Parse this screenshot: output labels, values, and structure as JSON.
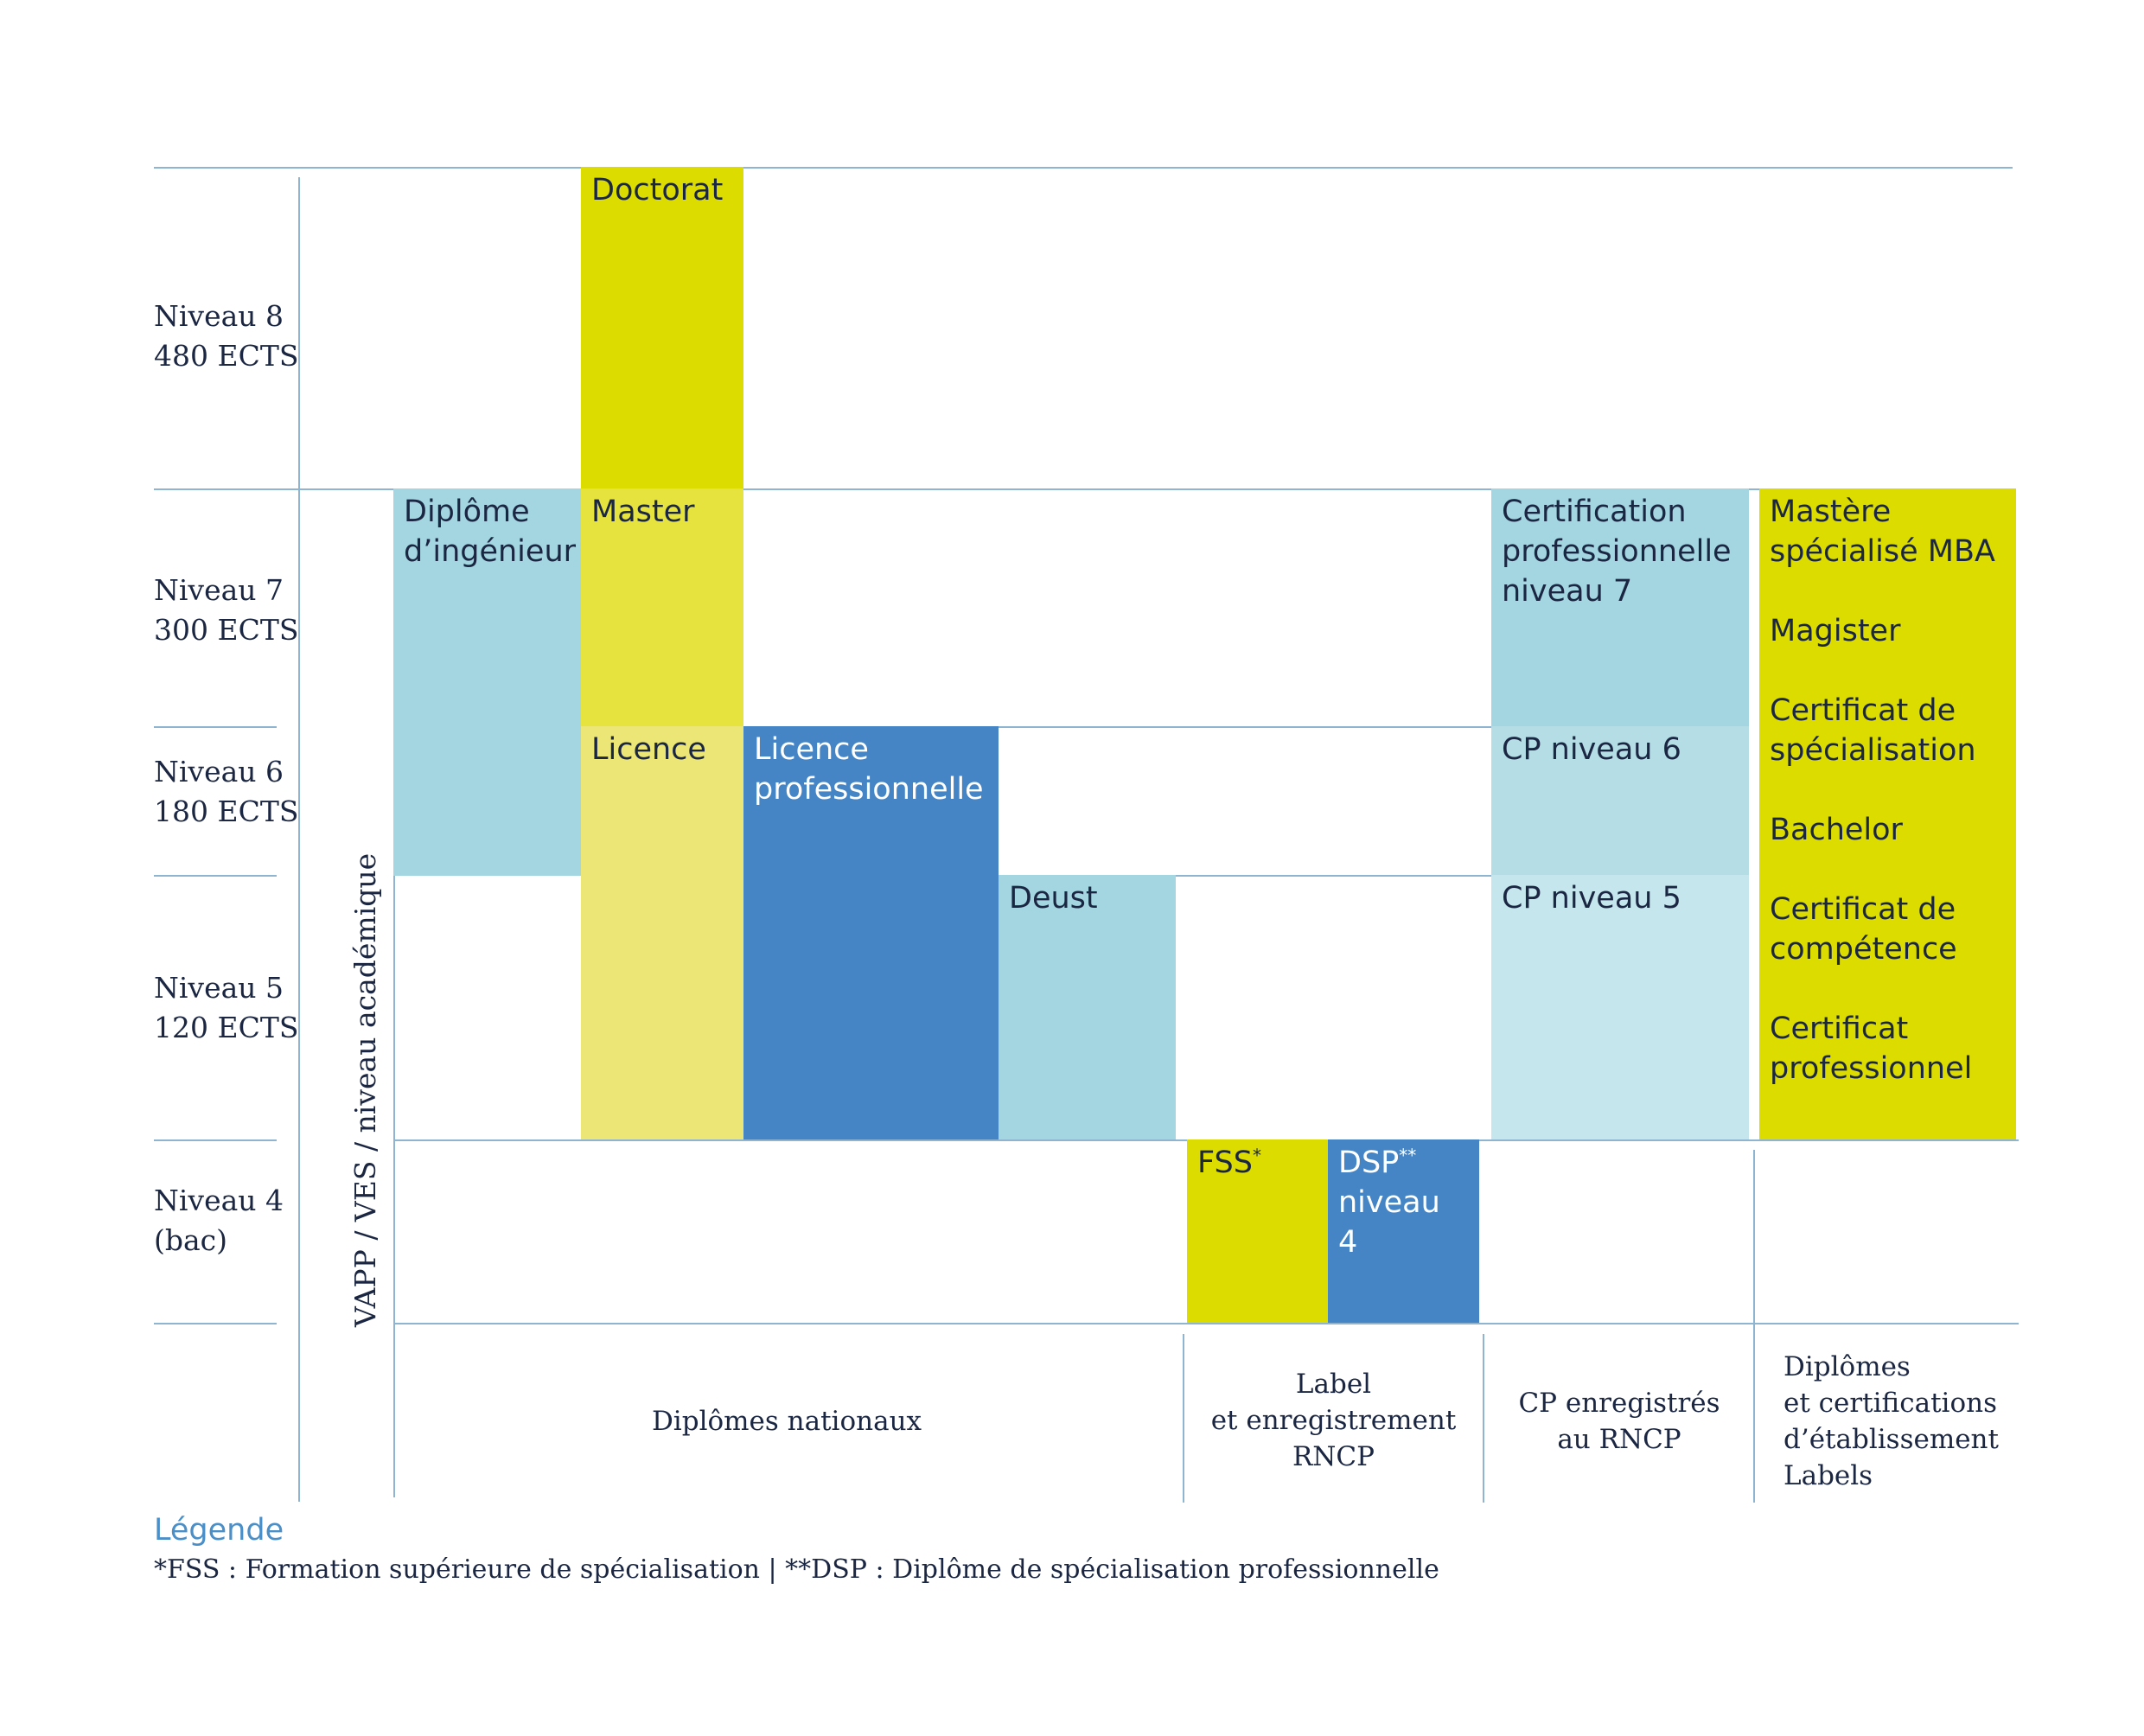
{
  "colors": {
    "yellow": "#dcdc00",
    "yellow_mid": "#e6e23e",
    "yellow_light": "#ebe675",
    "blue": "#4585c6",
    "teal": "#a3d6e0",
    "teal_mid": "#b4dde6",
    "teal_light": "#c5e6ed",
    "line": "#8db4d0",
    "text": "#1b2742",
    "legend_title": "#4b8fc9"
  },
  "levels": [
    {
      "name": "Niveau 8",
      "credits": "480 ECTS"
    },
    {
      "name": "Niveau 7",
      "credits": "300 ECTS"
    },
    {
      "name": "Niveau 6",
      "credits": "180 ECTS"
    },
    {
      "name": "Niveau 5",
      "credits": "120 ECTS"
    },
    {
      "name": "Niveau 4",
      "credits": "(bac)"
    }
  ],
  "vertical_label": "VAPP / VES / niveau académique",
  "blocks": {
    "doctorat": "Doctorat",
    "diplome_ingenieur": {
      "line1": "Diplôme",
      "line2": "d’ingénieur"
    },
    "master": "Master",
    "licence": "Licence",
    "licence_pro": {
      "line1": "Licence",
      "line2": "professionnelle"
    },
    "deust": "Deust",
    "fss": {
      "text": "FSS",
      "mark": "*"
    },
    "dsp": {
      "text": "DSP",
      "mark": "**",
      "line2": "niveau 4"
    },
    "cp7": {
      "line1": "Certification",
      "line2": "professionnelle",
      "line3": "niveau 7"
    },
    "cp6": "CP niveau 6",
    "cp5": "CP niveau 5",
    "etablissement": [
      {
        "line1": "Mastère",
        "line2": "spécialisé MBA"
      },
      {
        "line1": "Magister",
        "line2": ""
      },
      {
        "line1": "Certificat de",
        "line2": "spécialisation"
      },
      {
        "line1": "Bachelor",
        "line2": ""
      },
      {
        "line1": "Certificat de",
        "line2": "compétence"
      },
      {
        "line1": "Certificat",
        "line2": "professionnel"
      }
    ]
  },
  "categories": {
    "nationaux": "Diplômes nationaux",
    "label": {
      "line1": "Label",
      "line2": "et enregistrement",
      "line3": "RNCP"
    },
    "cp": {
      "line1": "CP enregistrés",
      "line2": "au RNCP"
    },
    "etablissement": {
      "line1": "Diplômes",
      "line2": "et certifications",
      "line3": "d’établissement",
      "line4": "Labels"
    }
  },
  "legend": {
    "title": "Légende",
    "text": "*FSS : Formation supérieure de spécialisation | **DSP : Diplôme de spécialisation professionnelle"
  }
}
